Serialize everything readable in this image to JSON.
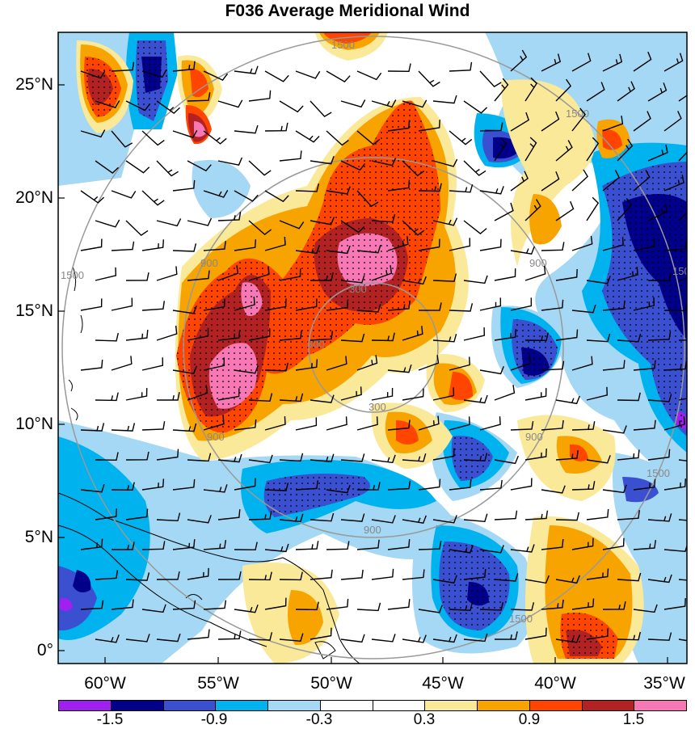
{
  "title": "F036 Average Meridional Wind",
  "lat_ticks": [
    "25°N",
    "20°N",
    "15°N",
    "10°N",
    "5°N",
    "0°"
  ],
  "lon_ticks": [
    "60°W",
    "55°W",
    "50°W",
    "45°W",
    "40°W",
    "35°W"
  ],
  "range_ring_labels": [
    "300",
    "300",
    "300",
    "900",
    "900",
    "900",
    "900",
    "900",
    "1500",
    "1500",
    "1500",
    "1500",
    "1500",
    "1500"
  ],
  "colorbar": {
    "labels": [
      "-1.5",
      "-0.9",
      "-0.3",
      "0.3",
      "0.9",
      "1.5"
    ],
    "colors": [
      "#a020f0",
      "#00008b",
      "#3a50d0",
      "#00b2ee",
      "#a4d8f4",
      "#ffffff",
      "#ffffff",
      "#fbe99a",
      "#f7a400",
      "#ff4500",
      "#b22222",
      "#f778b4"
    ]
  },
  "stippling": "dots"
}
